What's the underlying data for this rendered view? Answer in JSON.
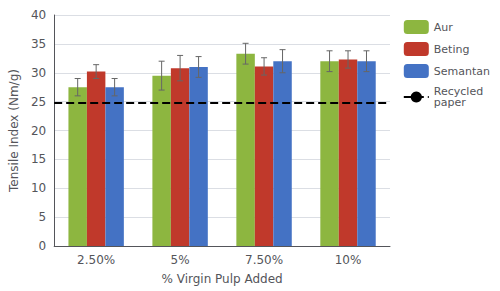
{
  "chart_data": {
    "type": "bar",
    "categories": [
      "2.50%",
      "5%",
      "7.50%",
      "10%"
    ],
    "series": [
      {
        "name": "Aur",
        "color": "#8DB640",
        "values": [
          27.5,
          29.5,
          33.3,
          32.0
        ],
        "errors": [
          1.5,
          2.5,
          1.8,
          1.8
        ]
      },
      {
        "name": "Beting",
        "color": "#C0392B",
        "values": [
          30.2,
          30.8,
          31.1,
          32.3
        ],
        "errors": [
          1.2,
          2.2,
          1.5,
          1.5
        ]
      },
      {
        "name": "Semantan",
        "color": "#4472C4",
        "values": [
          27.5,
          31.0,
          32.0,
          32.0
        ],
        "errors": [
          1.5,
          1.8,
          2.0,
          1.8
        ]
      }
    ],
    "error_color": "#666666",
    "lines": [
      {
        "y": 24.8,
        "label": "Recycled\npaper",
        "color": "#000000",
        "line_style": "dashed"
      }
    ],
    "xlabel": "% Virgin Pulp Added",
    "ylabel": "Tensile Index (Nm/g)",
    "ylim": [
      0,
      40
    ],
    "yticks": [
      0,
      5,
      10,
      15,
      20,
      25,
      30,
      35,
      40
    ],
    "grid": true,
    "legend": "right"
  }
}
